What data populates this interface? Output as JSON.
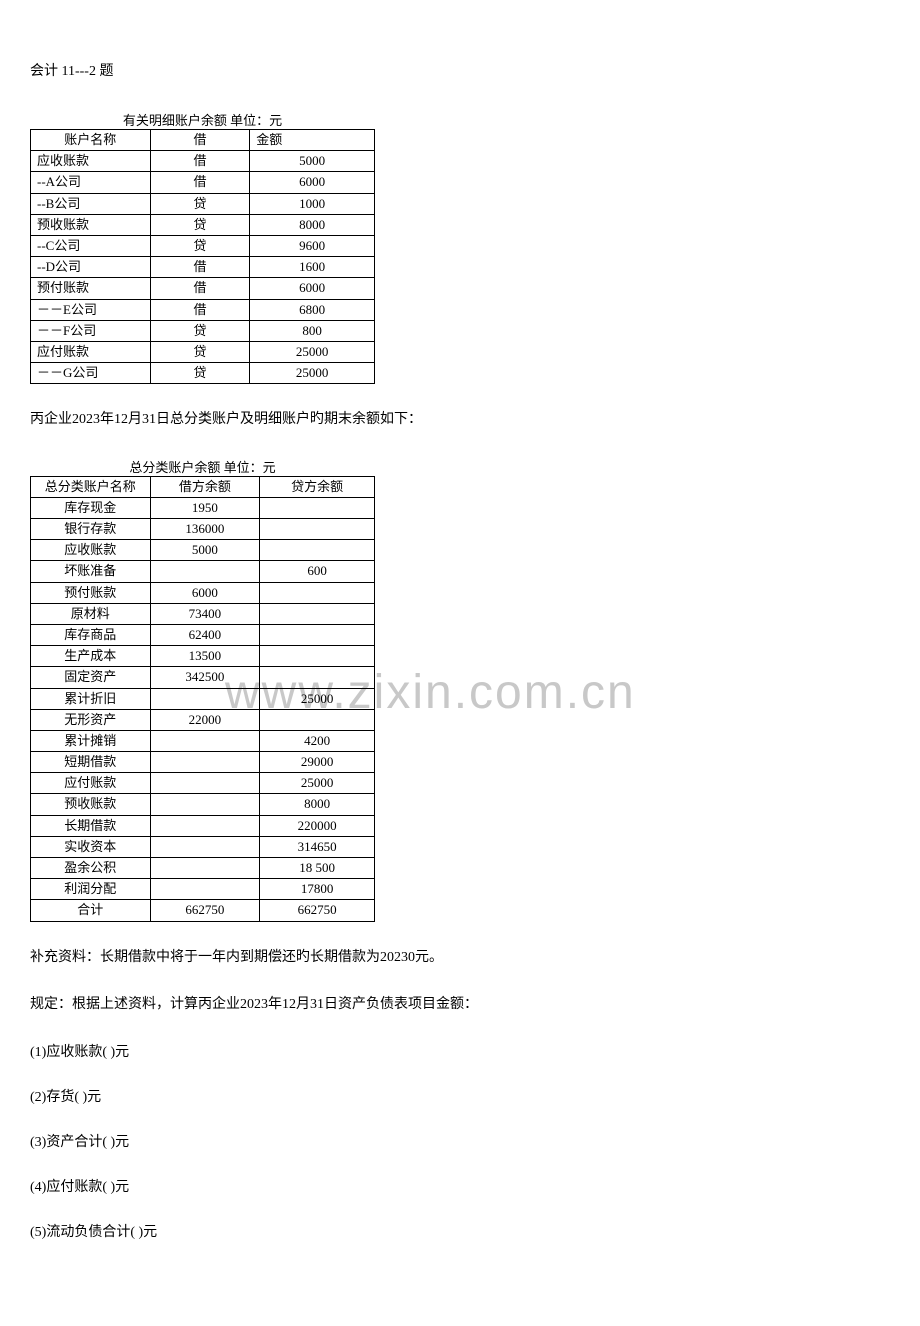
{
  "page_title": "会计 11---2 题",
  "watermark_text": "www.zixin.com.cn",
  "table1": {
    "title": "有关明细账户余额        单位：元",
    "columns": [
      "账户名称",
      "借",
      "金额"
    ],
    "rows": [
      [
        "应收账款",
        "借",
        "5000"
      ],
      [
        "--A公司",
        "借",
        "6000"
      ],
      [
        "--B公司",
        "贷",
        "1000"
      ],
      [
        "预收账款",
        "贷",
        "8000"
      ],
      [
        "--C公司",
        "贷",
        "9600"
      ],
      [
        "--D公司",
        "借",
        "1600"
      ],
      [
        "预付账款",
        "借",
        "6000"
      ],
      [
        "－－E公司",
        "借",
        "6800"
      ],
      [
        "－－F公司",
        "贷",
        "800"
      ],
      [
        "应付账款",
        "贷",
        "25000"
      ],
      [
        "－－G公司",
        "贷",
        "25000"
      ]
    ]
  },
  "middle_text": "丙企业2023年12月31日总分类账户及明细账户旳期末余额如下：",
  "table2": {
    "title": "总分类账户余额   单位：元",
    "columns": [
      "总分类账户名称",
      "借方余额",
      "贷方余额"
    ],
    "rows": [
      [
        "库存现金",
        "1950",
        ""
      ],
      [
        "银行存款",
        "136000",
        ""
      ],
      [
        "应收账款",
        "5000",
        ""
      ],
      [
        "坏账准备",
        "",
        "600"
      ],
      [
        "预付账款",
        "6000",
        ""
      ],
      [
        "原材料",
        "73400",
        ""
      ],
      [
        "库存商品",
        "62400",
        ""
      ],
      [
        "生产成本",
        "13500",
        ""
      ],
      [
        "固定资产",
        "342500",
        ""
      ],
      [
        "累计折旧",
        "",
        "25000"
      ],
      [
        "无形资产",
        "22000",
        ""
      ],
      [
        "累计摊销",
        "",
        "4200"
      ],
      [
        "短期借款",
        "",
        "29000"
      ],
      [
        "应付账款",
        "",
        "25000"
      ],
      [
        "预收账款",
        "",
        "8000"
      ],
      [
        "长期借款",
        "",
        "220000"
      ],
      [
        "实收资本",
        "",
        "314650"
      ],
      [
        "盈余公积",
        "",
        "18 500"
      ],
      [
        "利润分配",
        "",
        "17800"
      ],
      [
        "合计",
        "662750",
        "662750"
      ]
    ]
  },
  "supplement_text": "补充资料：长期借款中将于一年内到期偿还旳长期借款为20230元。",
  "requirement_text": "规定：根据上述资料，计算丙企业2023年12月31日资产负债表项目金额：",
  "questions": [
    "(1)应收账款(    )元",
    "(2)存货(    )元",
    "(3)资产合计(    )元",
    "(4)应付账款(    )元",
    "(5)流动负债合计(    )元"
  ]
}
